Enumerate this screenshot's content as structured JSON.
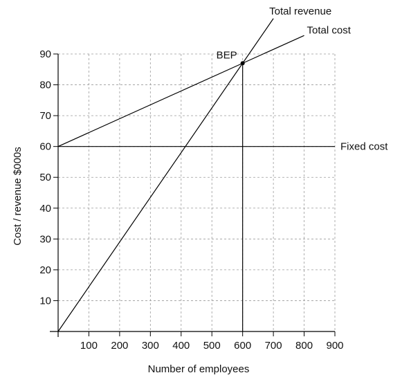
{
  "chart_data": {
    "type": "line",
    "xlabel": "Number of employees",
    "ylabel": "Cost / revenue $000s",
    "xlim": [
      0,
      900
    ],
    "ylim": [
      0,
      90
    ],
    "x_ticks": [
      100,
      200,
      300,
      400,
      500,
      600,
      700,
      800,
      900
    ],
    "x_tick_labels": [
      "100",
      "200",
      "300",
      "400",
      "500",
      "600",
      "700",
      "800",
      "900"
    ],
    "y_ticks": [
      10,
      20,
      30,
      40,
      50,
      60,
      70,
      80,
      90
    ],
    "y_tick_labels": [
      "10",
      "20",
      "30",
      "40",
      "50",
      "60",
      "70",
      "80",
      "90"
    ],
    "grid": true,
    "series": [
      {
        "name": "Total revenue",
        "x": [
          0,
          600,
          700
        ],
        "y": [
          0,
          87,
          101.5
        ]
      },
      {
        "name": "Total cost",
        "x": [
          0,
          600,
          800
        ],
        "y": [
          60,
          87,
          96
        ]
      },
      {
        "name": "Fixed cost",
        "x": [
          0,
          900
        ],
        "y": [
          60,
          60
        ]
      }
    ],
    "annotations": [
      {
        "text": "BEP",
        "x": 600,
        "y": 87
      }
    ],
    "reference_lines": [
      {
        "orientation": "vertical",
        "x": 600,
        "y_from": 0,
        "y_to": 87
      }
    ]
  }
}
